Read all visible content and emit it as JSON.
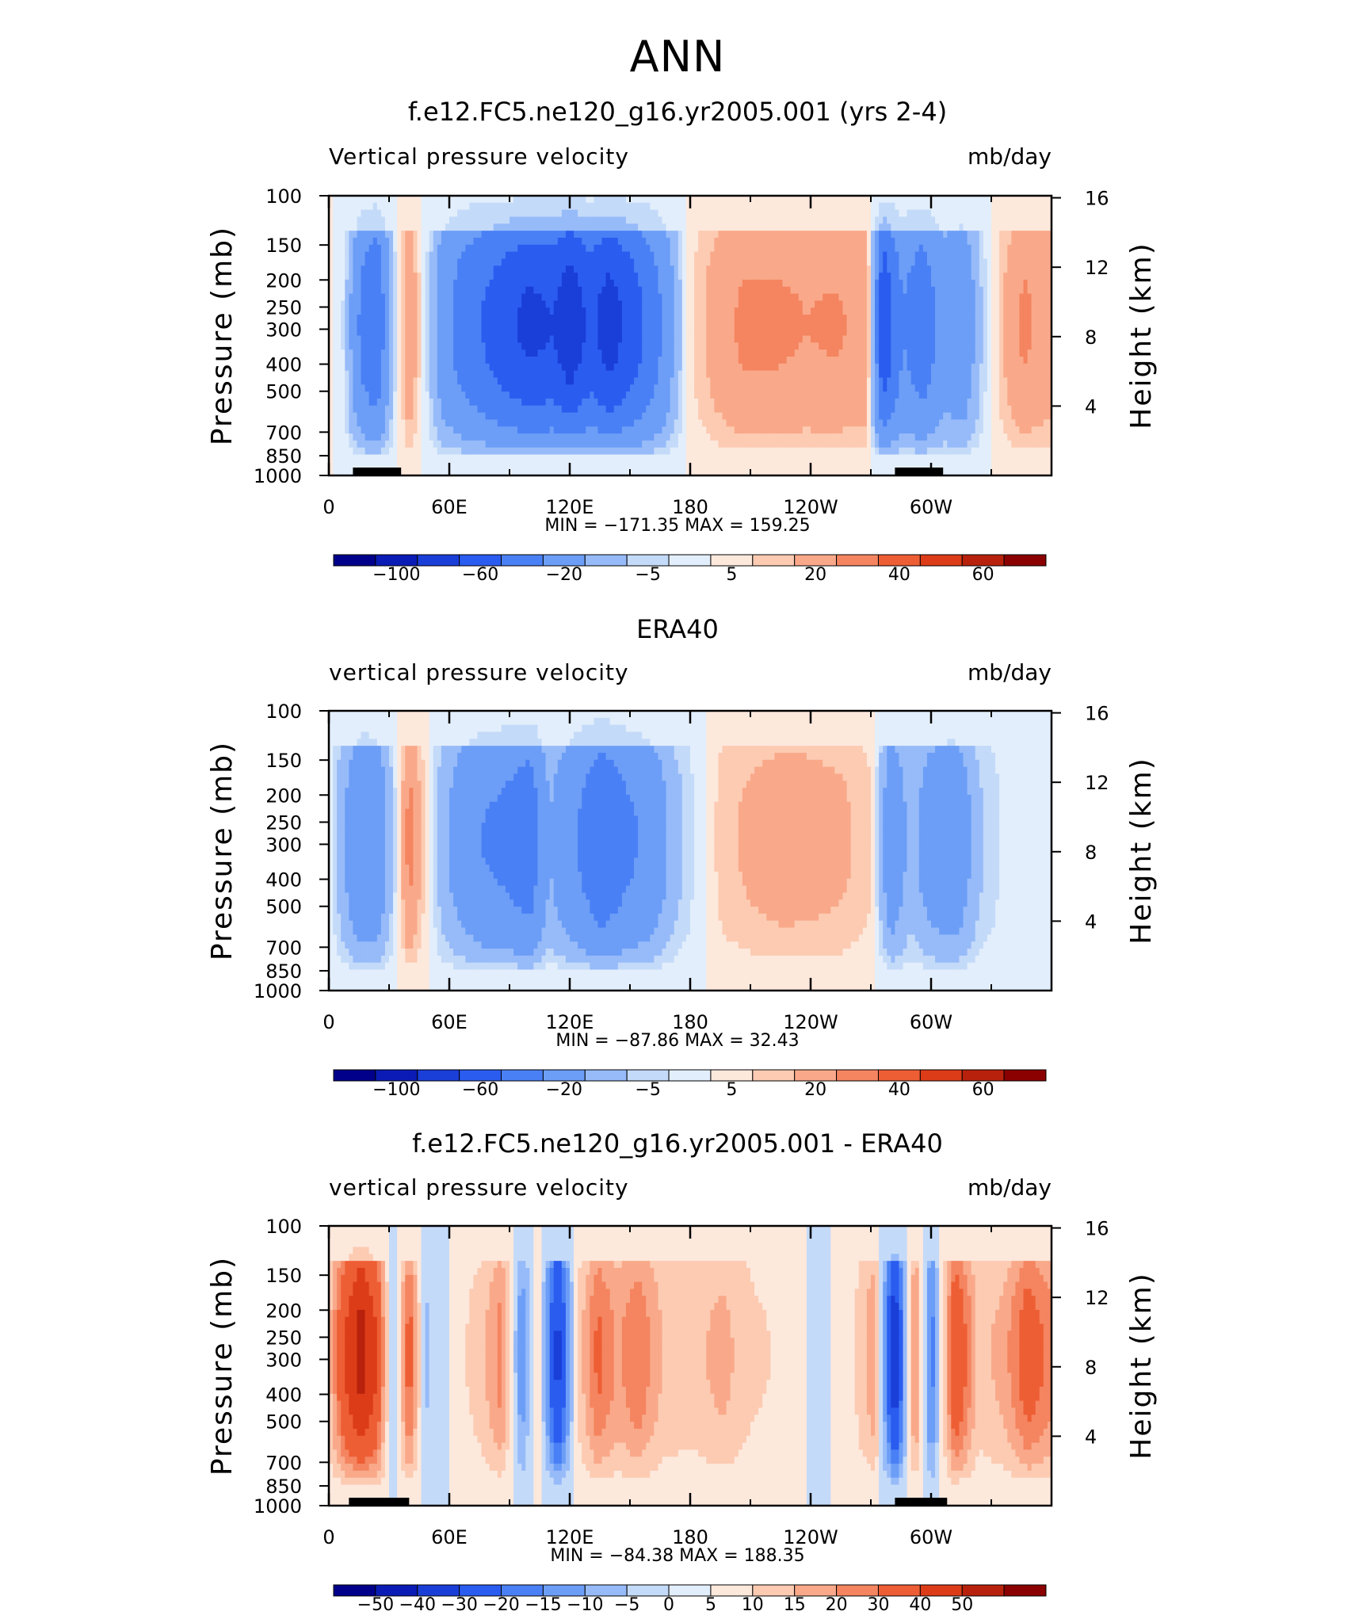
{
  "title": "ANN",
  "colors": {
    "full_scale": [
      "#00008b",
      "#0a1cb5",
      "#1a3ed8",
      "#2a5cf0",
      "#4a80f5",
      "#6c9ef7",
      "#97bbf9",
      "#c4daf9",
      "#e2eefb",
      "#fde8dc",
      "#fccbb2",
      "#f9a98a",
      "#f48560",
      "#ee5e34",
      "#dc3c18",
      "#b8220c",
      "#8b0000"
    ],
    "diff_scale": [
      "#00008b",
      "#0a1cb5",
      "#1a3ed8",
      "#2a5cf0",
      "#4a80f5",
      "#6c9ef7",
      "#97bbf9",
      "#c4daf9",
      "#e2eefb",
      "#fde8dc",
      "#fccbb2",
      "#f9a98a",
      "#f48560",
      "#ee5e34",
      "#dc3c18",
      "#b8220c",
      "#8b0000"
    ],
    "land": "#000000"
  },
  "chart_data": [
    {
      "type": "heatmap",
      "title": "f.e12.FC5.ne120_g16.yr2005.001 (yrs 2-4)",
      "left_label": "Vertical pressure velocity",
      "right_label": "mb/day",
      "ylabel": "Pressure (mb)",
      "ylabel_right": "Height (km)",
      "x_ticks": [
        "0",
        "60E",
        "120E",
        "180",
        "120W",
        "60W"
      ],
      "y_ticks": [
        "100",
        "150",
        "200",
        "250",
        "300",
        "400",
        "500",
        "700",
        "850",
        "1000"
      ],
      "y_ticks_right": [
        "16",
        "12",
        "8",
        "4"
      ],
      "stats": "MIN = −171.35   MAX = 159.25",
      "colorbar_labels": [
        "−100",
        "−60",
        "−20",
        "−5",
        "5",
        "20",
        "40",
        "60"
      ],
      "scale": "full_scale",
      "ylog": true,
      "x_range": [
        0,
        360
      ],
      "y_range": [
        1000,
        100
      ],
      "columns": [
        {
          "x": 0,
          "v": 1
        },
        {
          "x": 8,
          "v": -6
        },
        {
          "x": 16,
          "v": -45
        },
        {
          "x": 24,
          "v": -60
        },
        {
          "x": 32,
          "v": -10
        },
        {
          "x": 40,
          "v": 20
        },
        {
          "x": 48,
          "v": -3
        },
        {
          "x": 56,
          "v": -30
        },
        {
          "x": 66,
          "v": -50
        },
        {
          "x": 76,
          "v": -60
        },
        {
          "x": 88,
          "v": -75
        },
        {
          "x": 100,
          "v": -85
        },
        {
          "x": 112,
          "v": -80
        },
        {
          "x": 120,
          "v": -95
        },
        {
          "x": 130,
          "v": -75
        },
        {
          "x": 140,
          "v": -90
        },
        {
          "x": 152,
          "v": -70
        },
        {
          "x": 164,
          "v": -45
        },
        {
          "x": 172,
          "v": -20
        },
        {
          "x": 180,
          "v": 4
        },
        {
          "x": 192,
          "v": 14
        },
        {
          "x": 206,
          "v": 22
        },
        {
          "x": 222,
          "v": 22
        },
        {
          "x": 238,
          "v": 20
        },
        {
          "x": 252,
          "v": 21
        },
        {
          "x": 268,
          "v": 18
        },
        {
          "x": 276,
          "v": -80
        },
        {
          "x": 286,
          "v": -40
        },
        {
          "x": 296,
          "v": -55
        },
        {
          "x": 306,
          "v": -30
        },
        {
          "x": 316,
          "v": -35
        },
        {
          "x": 326,
          "v": -8
        },
        {
          "x": 336,
          "v": 10
        },
        {
          "x": 346,
          "v": 22
        },
        {
          "x": 360,
          "v": 16
        }
      ],
      "land": [
        [
          12,
          36
        ],
        [
          282,
          306
        ]
      ]
    },
    {
      "type": "heatmap",
      "title": "ERA40",
      "left_label": "vertical pressure velocity",
      "right_label": "mb/day",
      "ylabel": "Pressure (mb)",
      "ylabel_right": "Height (km)",
      "x_ticks": [
        "0",
        "60E",
        "120E",
        "180",
        "120W",
        "60W"
      ],
      "y_ticks": [
        "100",
        "150",
        "200",
        "250",
        "300",
        "400",
        "500",
        "700",
        "850",
        "1000"
      ],
      "y_ticks_right": [
        "16",
        "12",
        "8",
        "4"
      ],
      "stats": "MIN = −87.86   MAX =   32.43",
      "colorbar_labels": [
        "−100",
        "−60",
        "−20",
        "−5",
        "5",
        "20",
        "40",
        "60"
      ],
      "scale": "full_scale",
      "ylog": true,
      "x_range": [
        0,
        360
      ],
      "y_range": [
        1000,
        100
      ],
      "columns": [
        {
          "x": 0,
          "v": -2
        },
        {
          "x": 8,
          "v": -20
        },
        {
          "x": 16,
          "v": -40
        },
        {
          "x": 24,
          "v": -35
        },
        {
          "x": 32,
          "v": -10
        },
        {
          "x": 40,
          "v": 25
        },
        {
          "x": 48,
          "v": 4
        },
        {
          "x": 56,
          "v": -15
        },
        {
          "x": 66,
          "v": -30
        },
        {
          "x": 76,
          "v": -40
        },
        {
          "x": 88,
          "v": -45
        },
        {
          "x": 100,
          "v": -55
        },
        {
          "x": 110,
          "v": -20
        },
        {
          "x": 124,
          "v": -40
        },
        {
          "x": 136,
          "v": -60
        },
        {
          "x": 148,
          "v": -45
        },
        {
          "x": 160,
          "v": -35
        },
        {
          "x": 172,
          "v": -15
        },
        {
          "x": 184,
          "v": -3
        },
        {
          "x": 196,
          "v": 8
        },
        {
          "x": 210,
          "v": 12
        },
        {
          "x": 226,
          "v": 15
        },
        {
          "x": 240,
          "v": 14
        },
        {
          "x": 256,
          "v": 12
        },
        {
          "x": 270,
          "v": 6
        },
        {
          "x": 280,
          "v": -35
        },
        {
          "x": 290,
          "v": -15
        },
        {
          "x": 300,
          "v": -30
        },
        {
          "x": 312,
          "v": -35
        },
        {
          "x": 324,
          "v": -12
        },
        {
          "x": 336,
          "v": -4
        },
        {
          "x": 348,
          "v": -2
        },
        {
          "x": 360,
          "v": -2
        }
      ],
      "land": []
    },
    {
      "type": "heatmap",
      "title": "f.e12.FC5.ne120_g16.yr2005.001 - ERA40",
      "left_label": "vertical pressure velocity",
      "right_label": "mb/day",
      "ylabel": "Pressure (mb)",
      "ylabel_right": "Height (km)",
      "x_ticks": [
        "0",
        "60E",
        "120E",
        "180",
        "120W",
        "60W"
      ],
      "y_ticks": [
        "100",
        "150",
        "200",
        "250",
        "300",
        "400",
        "500",
        "700",
        "850",
        "1000"
      ],
      "y_ticks_right": [
        "16",
        "12",
        "8",
        "4"
      ],
      "stats": "MIN = −84.38   MAX = 188.35",
      "colorbar_labels": [
        "−50",
        "−40",
        "−30",
        "−20",
        "−15",
        "−10",
        "−5",
        "0",
        "5",
        "10",
        "15",
        "20",
        "30",
        "40",
        "50"
      ],
      "scale": "diff_scale",
      "ylog": true,
      "x_range": [
        0,
        360
      ],
      "y_range": [
        1000,
        100
      ],
      "columns": [
        {
          "x": 0,
          "v": 8
        },
        {
          "x": 8,
          "v": 30
        },
        {
          "x": 16,
          "v": 45
        },
        {
          "x": 24,
          "v": 30
        },
        {
          "x": 32,
          "v": -8
        },
        {
          "x": 40,
          "v": 25
        },
        {
          "x": 48,
          "v": -6
        },
        {
          "x": 56,
          "v": -3
        },
        {
          "x": 66,
          "v": 4
        },
        {
          "x": 76,
          "v": 8
        },
        {
          "x": 86,
          "v": 18
        },
        {
          "x": 96,
          "v": -15
        },
        {
          "x": 104,
          "v": 6
        },
        {
          "x": 114,
          "v": -35
        },
        {
          "x": 124,
          "v": 6
        },
        {
          "x": 134,
          "v": 22
        },
        {
          "x": 144,
          "v": 14
        },
        {
          "x": 154,
          "v": 20
        },
        {
          "x": 166,
          "v": 10
        },
        {
          "x": 180,
          "v": 8
        },
        {
          "x": 196,
          "v": 12
        },
        {
          "x": 212,
          "v": 6
        },
        {
          "x": 228,
          "v": 4
        },
        {
          "x": 244,
          "v": -2
        },
        {
          "x": 260,
          "v": 3
        },
        {
          "x": 272,
          "v": 15
        },
        {
          "x": 282,
          "v": -40
        },
        {
          "x": 292,
          "v": 20
        },
        {
          "x": 300,
          "v": -20
        },
        {
          "x": 312,
          "v": 30
        },
        {
          "x": 324,
          "v": 8
        },
        {
          "x": 336,
          "v": 12
        },
        {
          "x": 348,
          "v": 25
        },
        {
          "x": 360,
          "v": 18
        }
      ],
      "land": [
        [
          10,
          40
        ],
        [
          282,
          308
        ]
      ]
    }
  ]
}
